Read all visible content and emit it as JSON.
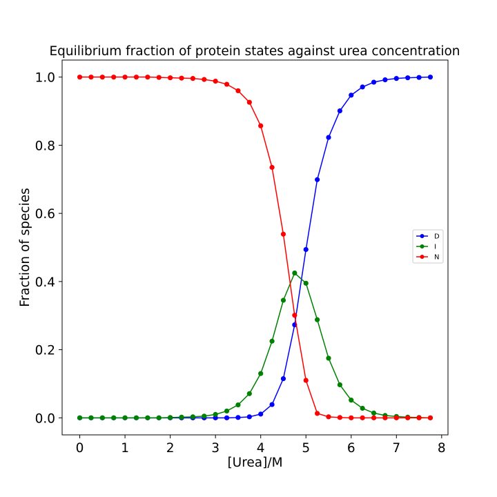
{
  "chart_data": {
    "type": "line",
    "title": "Equilibrium fraction of protein states against urea concentration",
    "xlabel": "[Urea]/M",
    "ylabel": "Fraction of species",
    "xlim": [
      -0.39,
      8.14
    ],
    "ylim": [
      -0.05,
      1.05
    ],
    "xticks": [
      0,
      1,
      2,
      3,
      4,
      5,
      6,
      7,
      8
    ],
    "xtick_labels": [
      "0",
      "1",
      "2",
      "3",
      "4",
      "5",
      "6",
      "7",
      "8"
    ],
    "yticks": [
      0.0,
      0.2,
      0.4,
      0.6,
      0.8,
      1.0
    ],
    "ytick_labels": [
      "0.0",
      "0.2",
      "0.4",
      "0.6",
      "0.8",
      "1.0"
    ],
    "grid": false,
    "legend_position": "center-right",
    "x": [
      0,
      0.25,
      0.5,
      0.75,
      1.0,
      1.25,
      1.5,
      1.75,
      2.0,
      2.25,
      2.5,
      2.75,
      3.0,
      3.25,
      3.5,
      3.75,
      4.0,
      4.25,
      4.5,
      4.75,
      5.0,
      5.25,
      5.5,
      5.75,
      6.0,
      6.25,
      6.5,
      6.75,
      7.0,
      7.25,
      7.5,
      7.75
    ],
    "series": [
      {
        "name": "D",
        "color": "#0000ff",
        "values": [
          0,
          0,
          0,
          0,
          0,
          0,
          0,
          0,
          0,
          0,
          0,
          0,
          0,
          0,
          0.001,
          0.003,
          0.011,
          0.039,
          0.115,
          0.273,
          0.494,
          0.699,
          0.823,
          0.901,
          0.947,
          0.971,
          0.985,
          0.992,
          0.996,
          0.998,
          0.999,
          1.0
        ]
      },
      {
        "name": "I",
        "color": "#008000",
        "values": [
          0,
          0,
          0,
          0,
          0,
          0,
          0,
          0,
          0.001,
          0.002,
          0.003,
          0.005,
          0.01,
          0.02,
          0.038,
          0.071,
          0.13,
          0.225,
          0.345,
          0.425,
          0.395,
          0.288,
          0.175,
          0.097,
          0.052,
          0.028,
          0.014,
          0.007,
          0.004,
          0.002,
          0.001,
          0.0
        ]
      },
      {
        "name": "N",
        "color": "#ff0000",
        "values": [
          1.0,
          1.0,
          1.0,
          1.0,
          1.0,
          1.0,
          1.0,
          0.999,
          0.998,
          0.997,
          0.996,
          0.993,
          0.988,
          0.979,
          0.96,
          0.926,
          0.857,
          0.735,
          0.539,
          0.301,
          0.11,
          0.013,
          0.003,
          0.001,
          0,
          0,
          0,
          0,
          0,
          0,
          0,
          0
        ]
      }
    ]
  }
}
